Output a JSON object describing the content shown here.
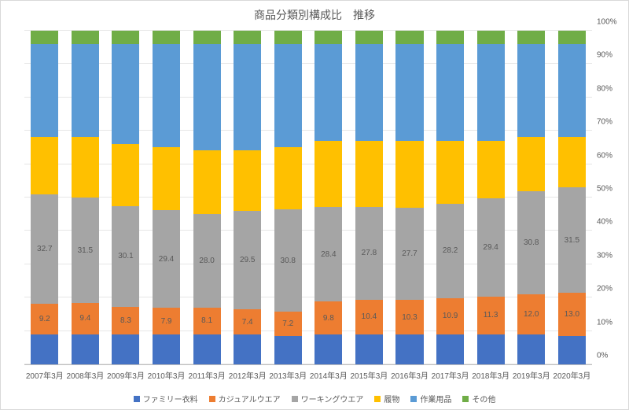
{
  "chart": {
    "type": "stacked-bar-100",
    "title": "商品分類別構成比　推移",
    "title_fontsize": 14,
    "label_fontsize": 10,
    "background_color": "#ffffff",
    "grid_color": "#e6e6e6",
    "axis_color": "#bfbfbf",
    "text_color": "#595959",
    "bar_width_ratio": 0.68,
    "ylim": [
      0,
      100
    ],
    "ytick_step": 10,
    "yticks": [
      "0%",
      "10%",
      "20%",
      "30%",
      "40%",
      "50%",
      "60%",
      "70%",
      "80%",
      "90%",
      "100%"
    ],
    "categories": [
      "2007年3月",
      "2008年3月",
      "2009年3月",
      "2010年3月",
      "2011年3月",
      "2012年3月",
      "2013年3月",
      "2014年3月",
      "2015年3月",
      "2016年3月",
      "2017年3月",
      "2018年3月",
      "2019年3月",
      "2020年3月"
    ],
    "series": [
      {
        "key": "family",
        "label": "ファミリー衣料",
        "color": "#4472c4"
      },
      {
        "key": "casual",
        "label": "カジュアルウエア",
        "color": "#ed7d31"
      },
      {
        "key": "working",
        "label": "ワーキングウエア",
        "color": "#a5a5a5"
      },
      {
        "key": "footwear",
        "label": "履物",
        "color": "#ffc000"
      },
      {
        "key": "supplies",
        "label": "作業用品",
        "color": "#5b9bd5"
      },
      {
        "key": "other",
        "label": "その他",
        "color": "#70ad47"
      }
    ],
    "values": {
      "family": [
        9.0,
        9.0,
        9.0,
        9.0,
        9.0,
        9.0,
        8.5,
        9.0,
        9.0,
        9.0,
        9.0,
        9.0,
        9.0,
        8.5
      ],
      "casual": [
        9.2,
        9.4,
        8.3,
        7.9,
        8.1,
        7.4,
        7.2,
        9.8,
        10.4,
        10.3,
        10.9,
        11.3,
        12.0,
        13.0
      ],
      "working": [
        32.7,
        31.5,
        30.1,
        29.4,
        28.0,
        29.5,
        30.8,
        28.4,
        27.8,
        27.7,
        28.2,
        29.4,
        30.8,
        31.5
      ],
      "footwear": [
        17.2,
        18.2,
        18.7,
        18.8,
        19.0,
        18.2,
        18.6,
        19.9,
        19.9,
        20.1,
        19.0,
        17.4,
        16.3,
        15.1
      ],
      "supplies": [
        27.9,
        27.9,
        30.0,
        31.0,
        32.0,
        32.0,
        31.0,
        29.0,
        29.0,
        29.0,
        29.0,
        29.0,
        28.0,
        28.0
      ],
      "other": [
        4.0,
        4.0,
        3.9,
        3.9,
        3.9,
        3.9,
        3.9,
        3.9,
        3.9,
        3.9,
        3.9,
        3.9,
        3.9,
        3.9
      ]
    },
    "value_labels_shown_for": [
      "casual",
      "working"
    ],
    "last_bar_family_hatched": true
  }
}
